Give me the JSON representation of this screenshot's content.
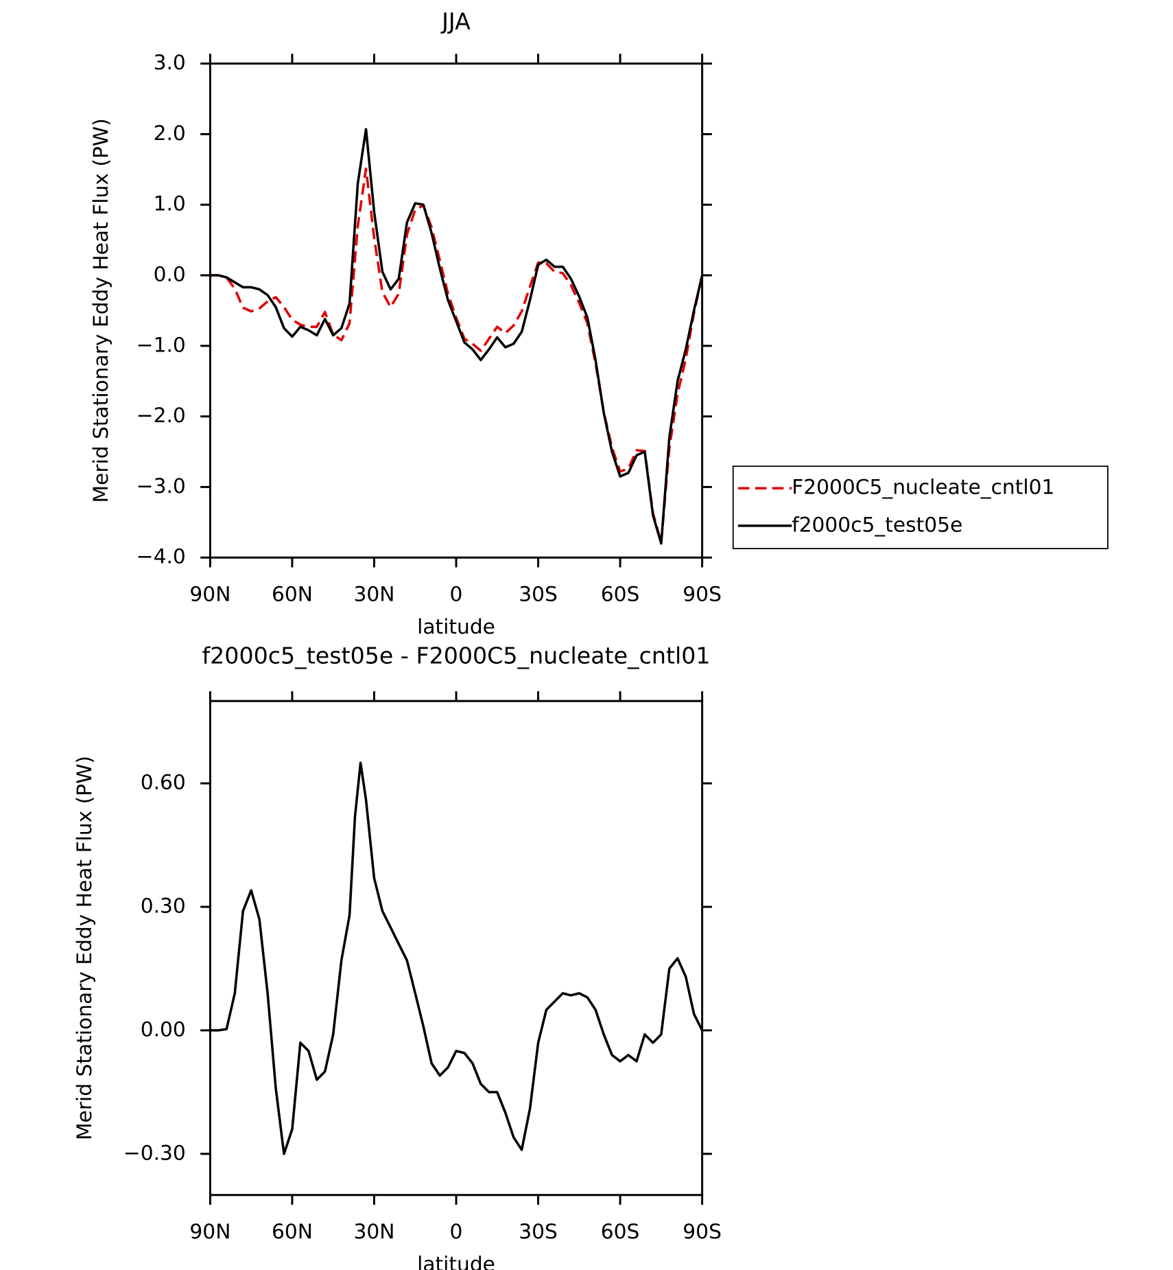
{
  "chart_data": [
    {
      "type": "line",
      "title": "JJA",
      "ylabel": "Merid Stationary Eddy Heat Flux (PW)",
      "xlabel": "latitude",
      "x": [
        90,
        87,
        84,
        81,
        78,
        75,
        72,
        69,
        66,
        63,
        60,
        57,
        54,
        51,
        48,
        45,
        42,
        39,
        36,
        33,
        30,
        27,
        24,
        21,
        18,
        15,
        12,
        9,
        6,
        3,
        0,
        -3,
        -6,
        -9,
        -12,
        -15,
        -18,
        -21,
        -24,
        -27,
        -30,
        -33,
        -36,
        -39,
        -42,
        -45,
        -48,
        -51,
        -54,
        -57,
        -60,
        -63,
        -66,
        -69,
        -72,
        -75,
        -78,
        -81,
        -84,
        -87,
        -90
      ],
      "series": [
        {
          "name": "F2000C5_nucleate_cntl01",
          "color": "#e00000",
          "dashed": true,
          "values": [
            0,
            0,
            -0.03,
            -0.19,
            -0.46,
            -0.51,
            -0.47,
            -0.37,
            -0.31,
            -0.45,
            -0.63,
            -0.7,
            -0.73,
            -0.73,
            -0.52,
            -0.84,
            -0.92,
            -0.68,
            0.7,
            1.51,
            0.53,
            -0.24,
            -0.45,
            -0.26,
            0.58,
            0.93,
            0.99,
            0.68,
            0.21,
            -0.26,
            -0.6,
            -0.9,
            -0.97,
            -1.07,
            -0.9,
            -0.73,
            -0.82,
            -0.71,
            -0.51,
            -0.16,
            0.18,
            0.17,
            0.05,
            0.03,
            -0.14,
            -0.39,
            -0.68,
            -1.25,
            -1.94,
            -2.44,
            -2.78,
            -2.74,
            -2.48,
            -2.49,
            -3.37,
            -3.79,
            -2.45,
            -1.68,
            -1.18,
            -0.54,
            0
          ]
        },
        {
          "name": "f2000c5_test05e",
          "color": "#000000",
          "dashed": false,
          "values": [
            0,
            0,
            -0.03,
            -0.1,
            -0.17,
            -0.17,
            -0.2,
            -0.28,
            -0.45,
            -0.75,
            -0.87,
            -0.73,
            -0.78,
            -0.85,
            -0.62,
            -0.85,
            -0.75,
            -0.4,
            1.3,
            2.07,
            0.9,
            0.05,
            -0.2,
            -0.05,
            0.75,
            1.02,
            1.0,
            0.6,
            0.1,
            -0.35,
            -0.65,
            -0.95,
            -1.05,
            -1.2,
            -1.05,
            -0.88,
            -1.02,
            -0.97,
            -0.8,
            -0.35,
            0.15,
            0.22,
            0.12,
            0.12,
            -0.05,
            -0.3,
            -0.6,
            -1.2,
            -1.95,
            -2.5,
            -2.85,
            -2.8,
            -2.55,
            -2.5,
            -3.4,
            -3.8,
            -2.3,
            -1.5,
            -1.05,
            -0.5,
            0
          ]
        }
      ],
      "xlim": [
        90,
        -90
      ],
      "xticks": [
        {
          "value": 90,
          "label": "90N"
        },
        {
          "value": 60,
          "label": "60N"
        },
        {
          "value": 30,
          "label": "30N"
        },
        0,
        {
          "value": -30,
          "label": "30S"
        },
        {
          "value": -60,
          "label": "60S"
        },
        {
          "value": -90,
          "label": "90S"
        }
      ],
      "ylim": [
        -4,
        3
      ],
      "yticks": [
        {
          "value": -4,
          "label": "−4.0"
        },
        {
          "value": -3,
          "label": "−3.0"
        },
        {
          "value": -2,
          "label": "−2.0"
        },
        {
          "value": -1,
          "label": "−1.0"
        },
        {
          "value": 0,
          "label": "0.0"
        },
        {
          "value": 1,
          "label": "1.0"
        },
        {
          "value": 2,
          "label": "2.0"
        },
        {
          "value": 3,
          "label": "3.0"
        }
      ],
      "legend": "outside-right"
    },
    {
      "type": "line",
      "title": "f2000c5_test05e - F2000C5_nucleate_cntl01",
      "ylabel": "Merid Stationary Eddy Heat Flux (PW)",
      "xlabel": "latitude",
      "x": [
        90,
        87,
        84,
        81,
        78,
        75,
        72,
        69,
        66,
        63,
        60,
        57,
        54,
        51,
        48,
        45,
        42,
        39,
        37,
        35,
        33,
        30,
        27,
        24,
        21,
        18,
        15,
        12,
        9,
        6,
        3,
        0,
        -3,
        -6,
        -9,
        -12,
        -15,
        -18,
        -21,
        -24,
        -27,
        -30,
        -33,
        -36,
        -39,
        -42,
        -45,
        -48,
        -51,
        -54,
        -57,
        -60,
        -63,
        -66,
        -69,
        -72,
        -75,
        -78,
        -81,
        -84,
        -87,
        -90
      ],
      "values": [
        0,
        0,
        0.003,
        0.09,
        0.29,
        0.34,
        0.27,
        0.09,
        -0.14,
        -0.3,
        -0.24,
        -0.03,
        -0.05,
        -0.12,
        -0.1,
        -0.01,
        0.17,
        0.28,
        0.52,
        0.65,
        0.56,
        0.37,
        0.29,
        0.25,
        0.21,
        0.17,
        0.09,
        0.01,
        -0.08,
        -0.11,
        -0.09,
        -0.05,
        -0.055,
        -0.08,
        -0.13,
        -0.15,
        -0.15,
        -0.2,
        -0.26,
        -0.29,
        -0.19,
        -0.03,
        0.05,
        0.07,
        0.09,
        0.085,
        0.09,
        0.08,
        0.05,
        -0.01,
        -0.06,
        -0.075,
        -0.06,
        -0.075,
        -0.01,
        -0.03,
        -0.01,
        0.15,
        0.175,
        0.13,
        0.04,
        0
      ],
      "color": "#000000",
      "xlim": [
        90,
        -90
      ],
      "xticks": [
        {
          "value": 90,
          "label": "90N"
        },
        {
          "value": 60,
          "label": "60N"
        },
        {
          "value": 30,
          "label": "30N"
        },
        0,
        {
          "value": -30,
          "label": "30S"
        },
        {
          "value": -60,
          "label": "60S"
        },
        {
          "value": -90,
          "label": "90S"
        }
      ],
      "ylim": [
        -0.4,
        0.8
      ],
      "yticks": [
        {
          "value": -0.3,
          "label": "−0.30"
        },
        {
          "value": 0,
          "label": "0.00"
        },
        {
          "value": 0.3,
          "label": "0.30"
        },
        {
          "value": 0.6,
          "label": "0.60"
        }
      ]
    }
  ]
}
